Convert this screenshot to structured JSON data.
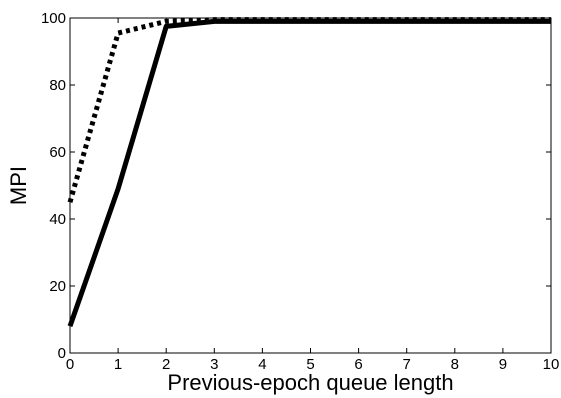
{
  "chart_data": {
    "type": "line",
    "title": "",
    "xlabel": "Previous-epoch queue length",
    "ylabel": "MPI",
    "xlim": [
      0,
      10
    ],
    "ylim": [
      0,
      100
    ],
    "x_ticks": [
      0,
      1,
      2,
      3,
      4,
      5,
      6,
      7,
      8,
      9,
      10
    ],
    "y_ticks": [
      0,
      20,
      40,
      60,
      80,
      100
    ],
    "grid": false,
    "legend": "none",
    "series": [
      {
        "style": "solid",
        "color": "#000000",
        "x": [
          0,
          1,
          2,
          3,
          4,
          5,
          6,
          7,
          8,
          9,
          10
        ],
        "y": [
          8,
          49,
          97.5,
          99,
          99,
          99,
          99,
          99,
          99,
          99,
          99
        ]
      },
      {
        "style": "dotted",
        "color": "#000000",
        "x": [
          0,
          1,
          2,
          3,
          4,
          5,
          6,
          7,
          8,
          9,
          10
        ],
        "y": [
          45,
          95.5,
          99,
          99.5,
          99.5,
          99.5,
          99.5,
          99.5,
          99.5,
          99.5,
          99.5
        ]
      }
    ]
  }
}
